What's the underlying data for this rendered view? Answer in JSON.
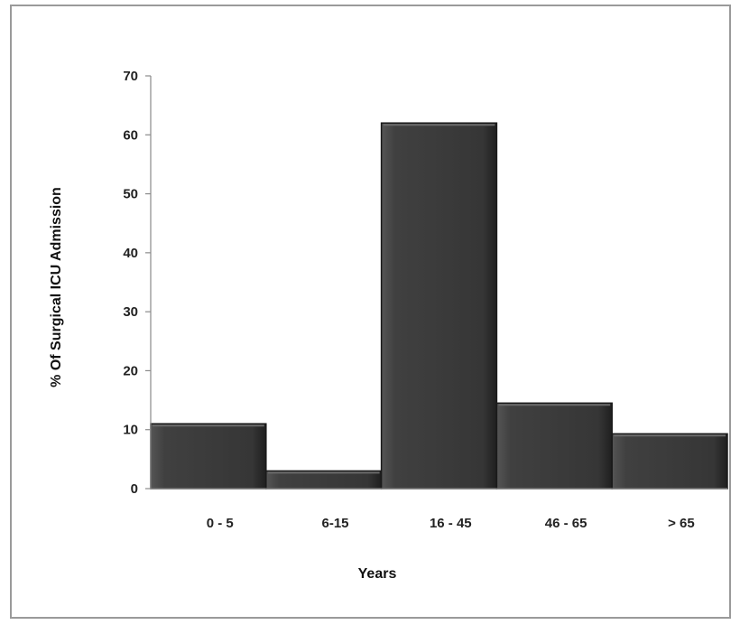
{
  "chart_data": {
    "type": "bar",
    "categories": [
      "0 - 5",
      "6-15",
      "16  - 45",
      "46 - 65",
      "> 65"
    ],
    "values": [
      11,
      3,
      62,
      14.5,
      9.3
    ],
    "xlabel": "Years",
    "ylabel": "% Of Surgical ICU Admission",
    "ylim": [
      0,
      70
    ],
    "yticks": [
      0,
      10,
      20,
      30,
      40,
      50,
      60,
      70
    ],
    "grid": false,
    "legend": "none",
    "bar_color": "#3a3a3a",
    "bar_edge_color": "#1a1a1a"
  }
}
